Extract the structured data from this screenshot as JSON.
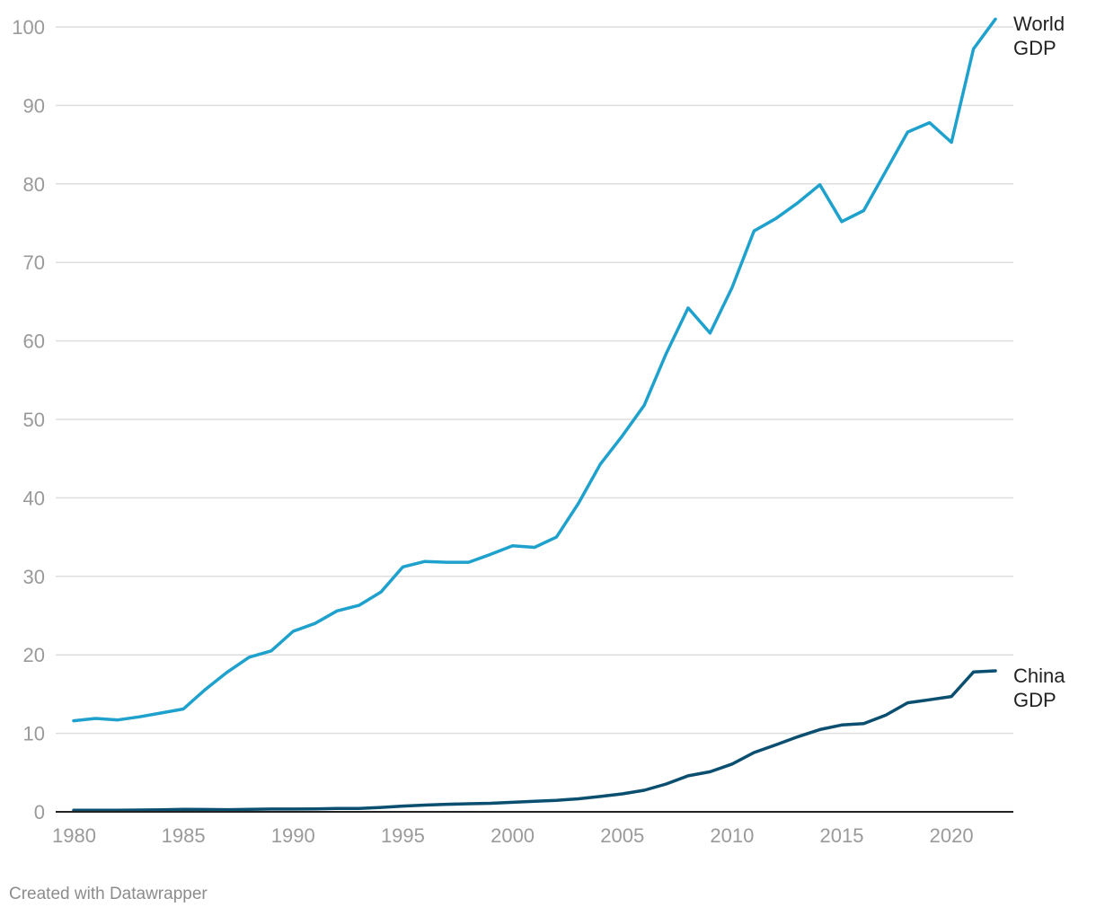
{
  "footer": "Created with Datawrapper",
  "colors": {
    "world": "#1ea1cc",
    "china": "#0b4f70",
    "grid": "#dedede",
    "tick": "#9a9a9a",
    "axis": "#222222"
  },
  "chart_data": {
    "type": "line",
    "title": "",
    "xlabel": "",
    "ylabel": "",
    "xlim": [
      1980,
      2022
    ],
    "ylim": [
      0,
      100
    ],
    "grid": true,
    "x_ticks": [
      1980,
      1985,
      1990,
      1995,
      2000,
      2005,
      2010,
      2015,
      2020
    ],
    "y_ticks": [
      0,
      10,
      20,
      30,
      40,
      50,
      60,
      70,
      80,
      90,
      100
    ],
    "x": [
      1980,
      1981,
      1982,
      1983,
      1984,
      1985,
      1986,
      1987,
      1988,
      1989,
      1990,
      1991,
      1992,
      1993,
      1994,
      1995,
      1996,
      1997,
      1998,
      1999,
      2000,
      2001,
      2002,
      2003,
      2004,
      2005,
      2006,
      2007,
      2008,
      2009,
      2010,
      2011,
      2012,
      2013,
      2014,
      2015,
      2016,
      2017,
      2018,
      2019,
      2020,
      2021,
      2022
    ],
    "series": [
      {
        "name": "World GDP",
        "label_lines": [
          "World",
          "GDP"
        ],
        "color": "#1ea1cc",
        "values": [
          11.6,
          11.9,
          11.7,
          12.1,
          12.6,
          13.1,
          15.6,
          17.8,
          19.7,
          20.5,
          23.0,
          24.0,
          25.6,
          26.3,
          28.0,
          31.2,
          31.9,
          31.8,
          31.8,
          32.8,
          33.9,
          33.7,
          35.0,
          39.3,
          44.3,
          47.9,
          51.8,
          58.4,
          64.2,
          61.0,
          66.8,
          74.0,
          75.6,
          77.6,
          79.9,
          75.2,
          76.6,
          81.6,
          86.6,
          87.8,
          85.3,
          97.2,
          101.0
        ]
      },
      {
        "name": "China GDP",
        "label_lines": [
          "China",
          "GDP"
        ],
        "color": "#0b4f70",
        "values": [
          0.19,
          0.2,
          0.2,
          0.23,
          0.26,
          0.31,
          0.3,
          0.27,
          0.31,
          0.35,
          0.36,
          0.38,
          0.43,
          0.44,
          0.56,
          0.73,
          0.86,
          0.96,
          1.03,
          1.09,
          1.21,
          1.34,
          1.47,
          1.66,
          1.96,
          2.29,
          2.75,
          3.55,
          4.59,
          5.1,
          6.09,
          7.55,
          8.53,
          9.57,
          10.48,
          11.06,
          11.23,
          12.31,
          13.89,
          14.28,
          14.69,
          17.82,
          17.96
        ]
      }
    ]
  }
}
